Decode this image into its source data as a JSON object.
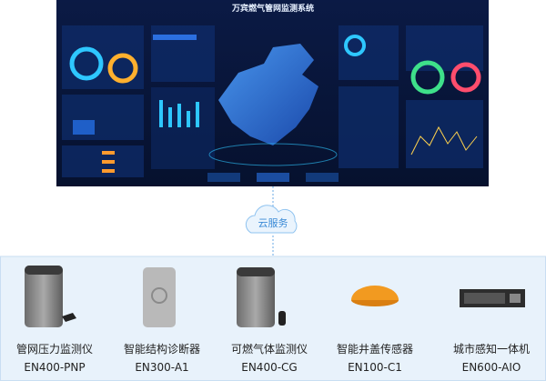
{
  "dashboard": {
    "title": "万宾燃气管网监测系统"
  },
  "cloud": {
    "label": "云服务"
  },
  "products": [
    {
      "name": "管网压力监测仪",
      "model": "EN400-PNP"
    },
    {
      "name": "智能结构诊断器",
      "model": "EN300-A1"
    },
    {
      "name": "可燃气体监测仪",
      "model": "EN400-CG"
    },
    {
      "name": "智能井盖传感器",
      "model": "EN100-C1"
    },
    {
      "name": "城市感知一体机",
      "model": "EN600-AIO"
    }
  ]
}
